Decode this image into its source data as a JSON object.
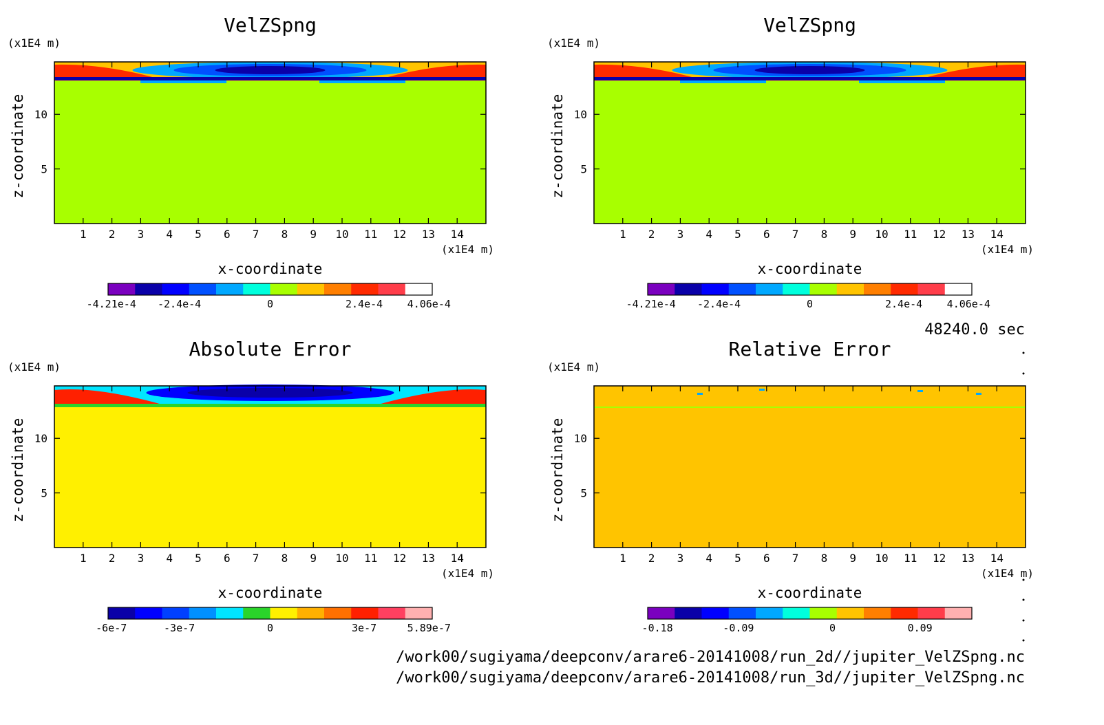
{
  "footer": {
    "time": "48240.0 sec",
    "path1": "/work00/sugiyama/deepconv/arare6-20141008/run_2d//jupiter_VelZSpng.nc",
    "path2": "/work00/sugiyama/deepconv/arare6-20141008/run_3d//jupiter_VelZSpng.nc"
  },
  "chart_data": [
    {
      "type": "heatmap",
      "title": "VelZSpng",
      "xlabel": "x-coordinate",
      "ylabel": "z-coordinate",
      "x_unit": "(x1E4 m)",
      "y_unit": "(x1E4 m)",
      "xlim": [
        0,
        15
      ],
      "ylim": [
        0,
        14.8
      ],
      "xticks": [
        "1",
        "2",
        "3",
        "4",
        "5",
        "6",
        "7",
        "8",
        "9",
        "10",
        "11",
        "12",
        "13",
        "14"
      ],
      "yticks": [
        "5",
        "10"
      ],
      "background": "#a8ff00",
      "colorbar": {
        "colors": [
          "#7a00bf",
          "#0a00a8",
          "#0000ff",
          "#0050ff",
          "#00a8ff",
          "#00ffdd",
          "#a8ff00",
          "#ffc400",
          "#ff7f00",
          "#ff2a00",
          "#ff3d4a",
          "#ffffff"
        ],
        "tick_labels": [
          "-4.21e-4",
          "-2.4e-4",
          "0",
          "2.4e-4",
          "4.06e-4"
        ]
      }
    },
    {
      "type": "heatmap",
      "title": "VelZSpng",
      "xlabel": "x-coordinate",
      "ylabel": "z-coordinate",
      "x_unit": "(x1E4 m)",
      "y_unit": "(x1E4 m)",
      "xlim": [
        0,
        15
      ],
      "ylim": [
        0,
        14.8
      ],
      "xticks": [
        "1",
        "2",
        "3",
        "4",
        "5",
        "6",
        "7",
        "8",
        "9",
        "10",
        "11",
        "12",
        "13",
        "14"
      ],
      "yticks": [
        "5",
        "10"
      ],
      "background": "#a8ff00",
      "colorbar": {
        "colors": [
          "#7a00bf",
          "#0a00a8",
          "#0000ff",
          "#0050ff",
          "#00a8ff",
          "#00ffdd",
          "#a8ff00",
          "#ffc400",
          "#ff7f00",
          "#ff2a00",
          "#ff3d4a",
          "#ffffff"
        ],
        "tick_labels": [
          "-4.21e-4",
          "-2.4e-4",
          "0",
          "2.4e-4",
          "4.06e-4"
        ]
      }
    },
    {
      "type": "heatmap",
      "title": "Absolute Error",
      "xlabel": "x-coordinate",
      "ylabel": "z-coordinate",
      "x_unit": "(x1E4 m)",
      "y_unit": "(x1E4 m)",
      "xlim": [
        0,
        15
      ],
      "ylim": [
        0,
        14.8
      ],
      "xticks": [
        "1",
        "2",
        "3",
        "4",
        "5",
        "6",
        "7",
        "8",
        "9",
        "10",
        "11",
        "12",
        "13",
        "14"
      ],
      "yticks": [
        "5",
        "10"
      ],
      "background": "#fff000",
      "colorbar": {
        "colors": [
          "#0a00a8",
          "#0000ff",
          "#0040ff",
          "#0090ff",
          "#00e5ff",
          "#2ad42a",
          "#fff000",
          "#ffb000",
          "#ff7000",
          "#ff2000",
          "#ff4060",
          "#ffb0b0"
        ],
        "tick_labels": [
          "-6e-7",
          "-3e-7",
          "0",
          "3e-7",
          "5.89e-7"
        ]
      }
    },
    {
      "type": "heatmap",
      "title": "Relative Error",
      "xlabel": "x-coordinate",
      "ylabel": "z-coordinate",
      "x_unit": "(x1E4 m)",
      "y_unit": "(x1E4 m)",
      "xlim": [
        0,
        15
      ],
      "ylim": [
        0,
        14.8
      ],
      "xticks": [
        "1",
        "2",
        "3",
        "4",
        "5",
        "6",
        "7",
        "8",
        "9",
        "10",
        "11",
        "12",
        "13",
        "14"
      ],
      "yticks": [
        "5",
        "10"
      ],
      "background": "#ffc400",
      "colorbar": {
        "colors": [
          "#7a00bf",
          "#0a00a8",
          "#0000ff",
          "#0050ff",
          "#00a8ff",
          "#00ffdd",
          "#a8ff00",
          "#ffc400",
          "#ff7f00",
          "#ff2a00",
          "#ff3d4a",
          "#ffb0b0"
        ],
        "tick_labels": [
          "-0.18",
          "-0.09",
          "0",
          "0.09"
        ]
      }
    }
  ]
}
